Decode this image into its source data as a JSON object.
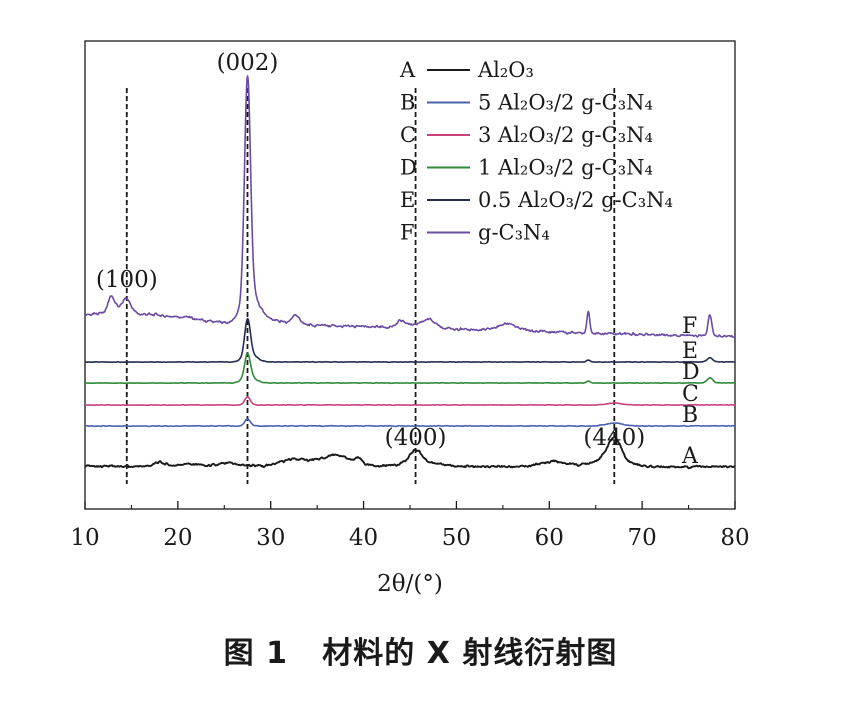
{
  "caption": "图 1   材料的 X 射线衍射图",
  "chart_data": {
    "type": "line",
    "title": "",
    "xlabel": "2θ/(°)",
    "ylabel": "",
    "xlim": [
      10,
      80
    ],
    "xticks": [
      10,
      20,
      30,
      40,
      50,
      60,
      70,
      80
    ],
    "y_axis_ticks": false,
    "legend_position": "top-right",
    "reference_lines_x": [
      14.5,
      27.5,
      45.6,
      67.0
    ],
    "peak_labels": [
      {
        "text": "(100)",
        "x": 14.5
      },
      {
        "text": "(002)",
        "x": 27.5
      },
      {
        "text": "(400)",
        "x": 45.6
      },
      {
        "text": "(440)",
        "x": 67.0
      }
    ],
    "series": [
      {
        "name": "A",
        "legend_text": "Al₂O₃",
        "color": "#1a1a1a"
      },
      {
        "name": "B",
        "legend_text": "5 Al₂O₃/2 g-C₃N₄",
        "color": "#4a62b0"
      },
      {
        "name": "C",
        "legend_text": "3 Al₂O₃/2 g-C₃N₄",
        "color": "#c8427e"
      },
      {
        "name": "D",
        "legend_text": "1 Al₂O₃/2 g-C₃N₄",
        "color": "#2f8a3a"
      },
      {
        "name": "E",
        "legend_text": "0.5 Al₂O₃/2 g-C₃N₄",
        "color": "#232d50"
      },
      {
        "name": "F",
        "legend_text": "g-C₃N₄",
        "color": "#6b4ba3"
      }
    ]
  }
}
